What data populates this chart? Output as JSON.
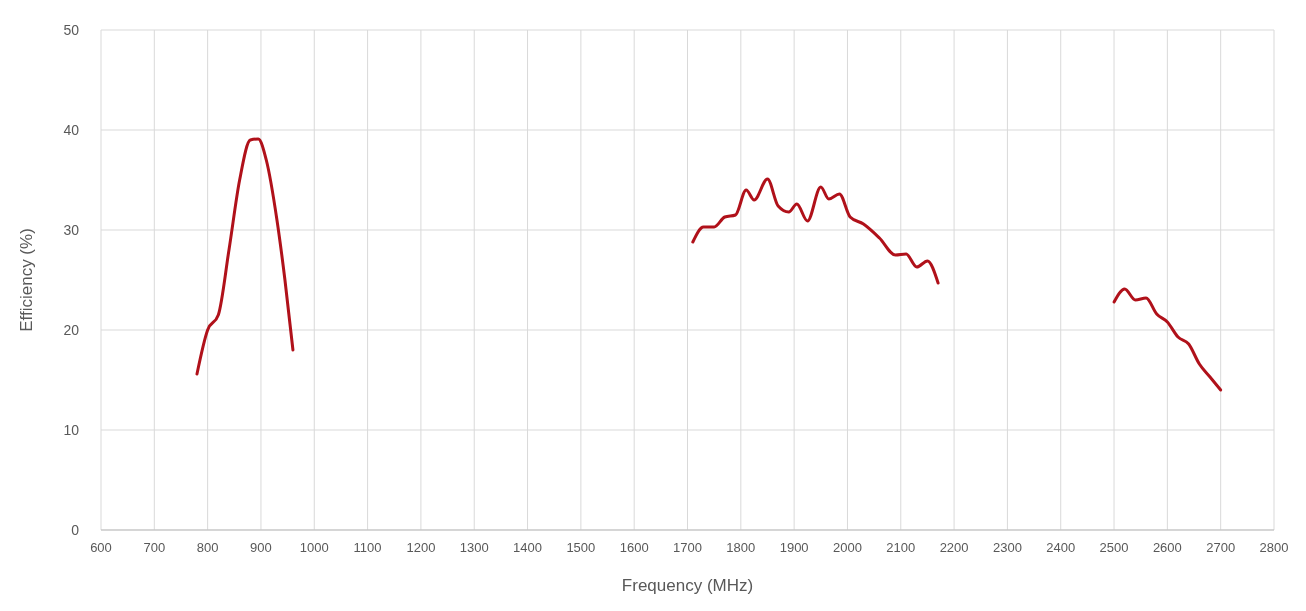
{
  "chart_data": {
    "type": "line",
    "xlabel": "Frequency (MHz)",
    "ylabel": "Efficiency (%)",
    "xlim": [
      600,
      2800
    ],
    "xticks": [
      600,
      700,
      800,
      900,
      1000,
      1100,
      1200,
      1300,
      1400,
      1500,
      1600,
      1700,
      1800,
      1900,
      2000,
      2100,
      2200,
      2300,
      2400,
      2500,
      2600,
      2700,
      2800
    ],
    "ylim": [
      0,
      50
    ],
    "yticks": [
      0,
      10,
      20,
      30,
      40,
      50
    ],
    "grid": true,
    "marker": "none",
    "line_style": "solid",
    "series": [
      {
        "color": "#b0111a",
        "x": [
          780,
          800,
          820,
          840,
          860,
          880,
          895,
          910,
          930,
          945,
          960
        ],
        "values": [
          15.6,
          20,
          21.5,
          28,
          35,
          39,
          39.1,
          37,
          31,
          25,
          18
        ]
      },
      {
        "color": "#b0111a",
        "x": [
          1710,
          1730,
          1750,
          1770,
          1790,
          1810,
          1825,
          1850,
          1870,
          1890,
          1905,
          1925,
          1950,
          1965,
          1985,
          2005,
          2030,
          2060,
          2090,
          2110,
          2130,
          2150,
          2170
        ],
        "values": [
          28.8,
          30.3,
          30.3,
          31.3,
          31.5,
          34,
          33,
          35.1,
          32.4,
          31.8,
          32.6,
          30.9,
          34.3,
          33.1,
          33.6,
          31.3,
          30.6,
          29.2,
          27.5,
          27.6,
          26.3,
          26.9,
          24.7
        ]
      },
      {
        "color": "#b0111a",
        "x": [
          2500,
          2520,
          2540,
          2560,
          2580,
          2600,
          2620,
          2640,
          2660,
          2680,
          2700
        ],
        "values": [
          22.8,
          24.1,
          23,
          23.2,
          21.6,
          20.8,
          19.3,
          18.6,
          16.6,
          15.3,
          14
        ]
      }
    ]
  }
}
